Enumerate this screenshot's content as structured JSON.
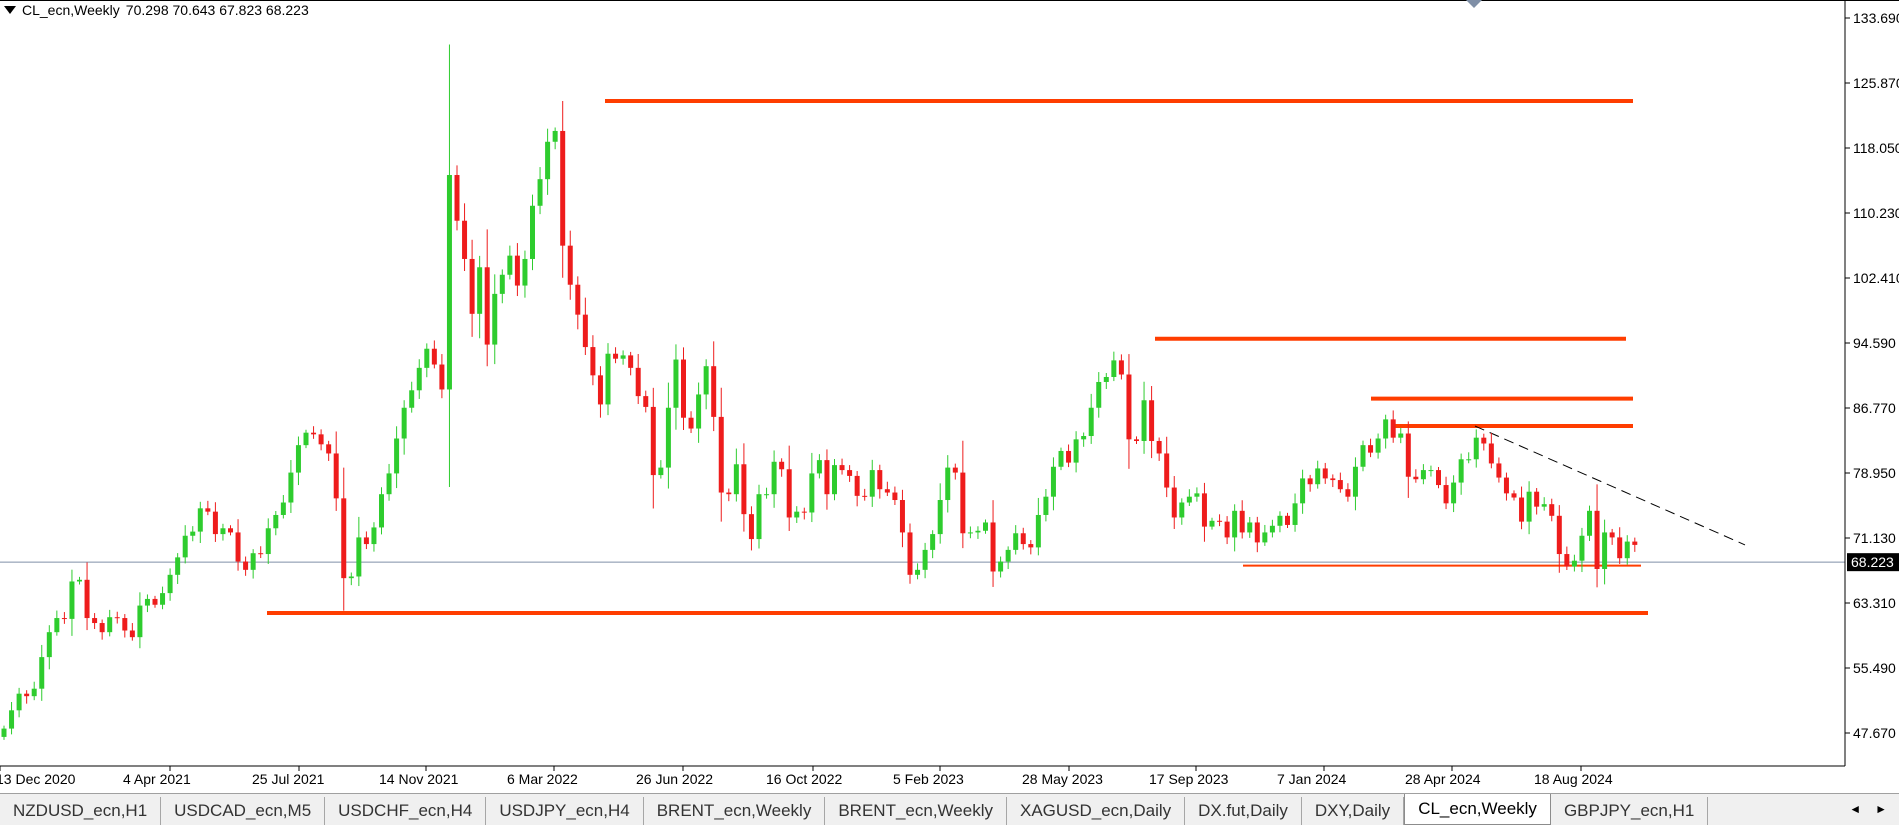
{
  "info_bar": {
    "symbol": "CL_ecn,Weekly",
    "ohlc": "70.298 70.643 67.823 68.223"
  },
  "tabs": [
    {
      "label": "NZDUSD_ecn,H1",
      "active": false
    },
    {
      "label": "USDCAD_ecn,M5",
      "active": false
    },
    {
      "label": "USDCHF_ecn,H4",
      "active": false
    },
    {
      "label": "USDJPY_ecn,H4",
      "active": false
    },
    {
      "label": "BRENT_ecn,Weekly",
      "active": false
    },
    {
      "label": "BRENT_ecn,Weekly",
      "active": false
    },
    {
      "label": "XAGUSD_ecn,Daily",
      "active": false
    },
    {
      "label": "DX.fut,Daily",
      "active": false
    },
    {
      "label": "DXY,Daily",
      "active": false
    },
    {
      "label": "CL_ecn,Weekly",
      "active": true
    },
    {
      "label": "GBPJPY_ecn,H1",
      "active": false
    }
  ],
  "tab_scroll": {
    "left": "◄",
    "right": "►"
  },
  "colors": {
    "bull": "#2ecc2e",
    "bear": "#ee1c1c",
    "level": "#ff3d00",
    "trend": "#000000",
    "current_price_line": "#7f8fa6",
    "axis": "#000000",
    "price_label_bg": "#000000",
    "price_label_text": "#ffffff"
  },
  "chart_data": {
    "type": "candlestick",
    "ylim": [
      44.0,
      137.0
    ],
    "y_ticks": [
      "133.690",
      "125.870",
      "118.050",
      "110.230",
      "102.410",
      "94.590",
      "86.770",
      "78.950",
      "71.130",
      "63.310",
      "55.490",
      "47.670"
    ],
    "y_tick_values": [
      133.69,
      125.87,
      118.05,
      110.23,
      102.41,
      94.59,
      86.77,
      78.95,
      71.13,
      63.31,
      55.49,
      47.67
    ],
    "x_ticks": [
      "13 Dec 2020",
      "4 Apr 2021",
      "25 Jul 2021",
      "14 Nov 2021",
      "6 Mar 2022",
      "26 Jun 2022",
      "16 Oct 2022",
      "5 Feb 2023",
      "28 May 2023",
      "17 Sep 2023",
      "7 Jan 2024",
      "28 Apr 2024",
      "18 Aug 2024"
    ],
    "current_price": 68.223,
    "current_price_label": "68.223",
    "closes": [
      48.2,
      50.4,
      52.4,
      52.1,
      53.0,
      56.8,
      59.8,
      61.5,
      61.4,
      65.9,
      66.1,
      61.5,
      60.9,
      59.8,
      61.6,
      61.5,
      60.0,
      59.2,
      63.0,
      63.8,
      63.1,
      64.5,
      66.7,
      68.8,
      71.4,
      71.9,
      74.7,
      74.3,
      71.6,
      72.3,
      71.8,
      68.3,
      67.3,
      69.3,
      69.2,
      72.3,
      73.9,
      75.4,
      79.0,
      82.3,
      83.8,
      83.6,
      82.4,
      81.3,
      75.9,
      66.3,
      66.5,
      71.2,
      70.4,
      72.4,
      76.4,
      78.9,
      83.1,
      86.8,
      88.9,
      91.6,
      93.9,
      92.0,
      89.0,
      114.8,
      109.3,
      104.7,
      98.1,
      103.7,
      94.4,
      100.5,
      102.8,
      105.1,
      101.5,
      104.7,
      111.1,
      114.3,
      118.8,
      120.1,
      106.3,
      101.6,
      98.0,
      94.1,
      90.7,
      87.2,
      93.3,
      92.7,
      93.1,
      91.6,
      88.2,
      86.9,
      78.7,
      79.6,
      86.8,
      92.6,
      85.6,
      84.3,
      88.4,
      91.8,
      85.7,
      76.6,
      76.4,
      80.0,
      74.0,
      71.0,
      76.4,
      76.4,
      80.3,
      79.4,
      73.6,
      74.3,
      74.2,
      78.9,
      80.5,
      76.4,
      79.9,
      79.3,
      78.6,
      76.2,
      76.1,
      79.3,
      77.0,
      76.6,
      75.7,
      71.8,
      66.7,
      67.3,
      69.7,
      71.6,
      75.7,
      79.6,
      79.0,
      71.7,
      71.8,
      72.0,
      73.0,
      67.1,
      68.3,
      69.7,
      71.7,
      70.4,
      70.0,
      73.9,
      76.1,
      79.7,
      81.6,
      80.2,
      83.0,
      83.4,
      86.8,
      89.9,
      90.5,
      92.5,
      90.8,
      83.0,
      82.8,
      87.7,
      82.8,
      81.3,
      77.2,
      73.6,
      75.4,
      76.1,
      76.5,
      72.5,
      73.2,
      73.1,
      71.2,
      74.4,
      71.8,
      73.0,
      70.6,
      71.8,
      72.6,
      73.8,
      72.7,
      75.3,
      78.3,
      77.6,
      79.5,
      78.3,
      78.1,
      77.0,
      76.1,
      79.7,
      82.3,
      81.4,
      83.1,
      85.4,
      83.2,
      83.7,
      78.5,
      78.2,
      79.3,
      79.3,
      77.5,
      75.3,
      77.8,
      80.6,
      80.6,
      83.2,
      82.5,
      80.1,
      78.4,
      76.5,
      76.0,
      73.1,
      76.7,
      74.9,
      75.2,
      73.8,
      69.2,
      67.7,
      68.4,
      71.4,
      74.4,
      67.4,
      71.8,
      71.2,
      68.7,
      70.7,
      70.3
    ],
    "opens": [
      47.2,
      48.2,
      50.4,
      52.4,
      52.1,
      53.0,
      56.8,
      59.8,
      61.5,
      61.4,
      65.9,
      66.1,
      61.5,
      60.9,
      59.8,
      61.6,
      61.5,
      60.0,
      59.2,
      63.0,
      63.8,
      63.1,
      64.5,
      66.7,
      68.8,
      71.4,
      71.9,
      74.7,
      74.3,
      71.6,
      72.3,
      71.8,
      68.3,
      67.3,
      69.3,
      69.2,
      72.3,
      73.9,
      75.4,
      79.0,
      82.3,
      83.8,
      83.6,
      82.4,
      81.3,
      75.9,
      66.3,
      66.5,
      71.2,
      70.4,
      72.4,
      76.4,
      78.9,
      83.1,
      86.8,
      88.9,
      91.6,
      93.9,
      92.0,
      89.0,
      114.8,
      109.3,
      104.7,
      98.1,
      103.7,
      94.4,
      100.5,
      102.8,
      105.1,
      101.5,
      104.7,
      111.1,
      114.3,
      118.8,
      120.1,
      106.3,
      101.6,
      98.0,
      94.1,
      90.7,
      87.2,
      93.3,
      92.7,
      93.1,
      91.6,
      88.2,
      86.9,
      78.7,
      79.6,
      86.8,
      92.6,
      85.6,
      84.3,
      88.4,
      91.8,
      85.7,
      76.6,
      76.4,
      80.0,
      74.0,
      71.0,
      76.4,
      76.4,
      80.3,
      79.4,
      73.6,
      74.3,
      74.2,
      78.9,
      80.5,
      76.4,
      79.9,
      79.3,
      78.6,
      76.2,
      76.1,
      79.3,
      77.0,
      76.6,
      75.7,
      71.8,
      66.7,
      67.3,
      69.7,
      71.6,
      75.7,
      79.6,
      79.0,
      71.7,
      71.8,
      72.0,
      73.0,
      67.1,
      68.3,
      69.7,
      71.7,
      70.4,
      70.0,
      73.9,
      76.1,
      79.7,
      81.6,
      80.2,
      83.0,
      83.4,
      86.8,
      89.9,
      90.5,
      92.5,
      90.8,
      83.0,
      82.8,
      87.7,
      82.8,
      81.3,
      77.2,
      73.6,
      75.4,
      76.1,
      76.5,
      72.5,
      73.2,
      73.1,
      71.2,
      74.4,
      71.8,
      73.0,
      70.6,
      71.8,
      72.6,
      73.8,
      72.7,
      75.3,
      78.3,
      77.6,
      79.5,
      78.3,
      78.1,
      77.0,
      76.1,
      79.7,
      82.3,
      81.4,
      83.1,
      85.4,
      83.2,
      83.7,
      78.5,
      78.2,
      79.3,
      79.3,
      77.5,
      75.3,
      77.8,
      80.6,
      80.6,
      83.2,
      82.5,
      80.1,
      78.4,
      76.5,
      76.0,
      73.1,
      76.7,
      74.9,
      75.2,
      73.8,
      69.2,
      67.7,
      68.4,
      71.4,
      74.4,
      67.4,
      71.8,
      71.2,
      68.7,
      70.7
    ]
  },
  "horizontal_levels": [
    {
      "price": 123.7,
      "x_from": 605,
      "x_to": 1633
    },
    {
      "price": 95.1,
      "x_from": 1155,
      "x_to": 1626
    },
    {
      "price": 87.9,
      "x_from": 1371,
      "x_to": 1633
    },
    {
      "price": 84.6,
      "x_from": 1395,
      "x_to": 1633
    },
    {
      "price": 67.8,
      "x_from": 1243,
      "x_to": 1641
    },
    {
      "price": 62.1,
      "x_from": 267,
      "x_to": 1648
    }
  ],
  "trendline": {
    "x1": 1475,
    "p1": 84.6,
    "x2": 1745,
    "p2": 70.3
  }
}
